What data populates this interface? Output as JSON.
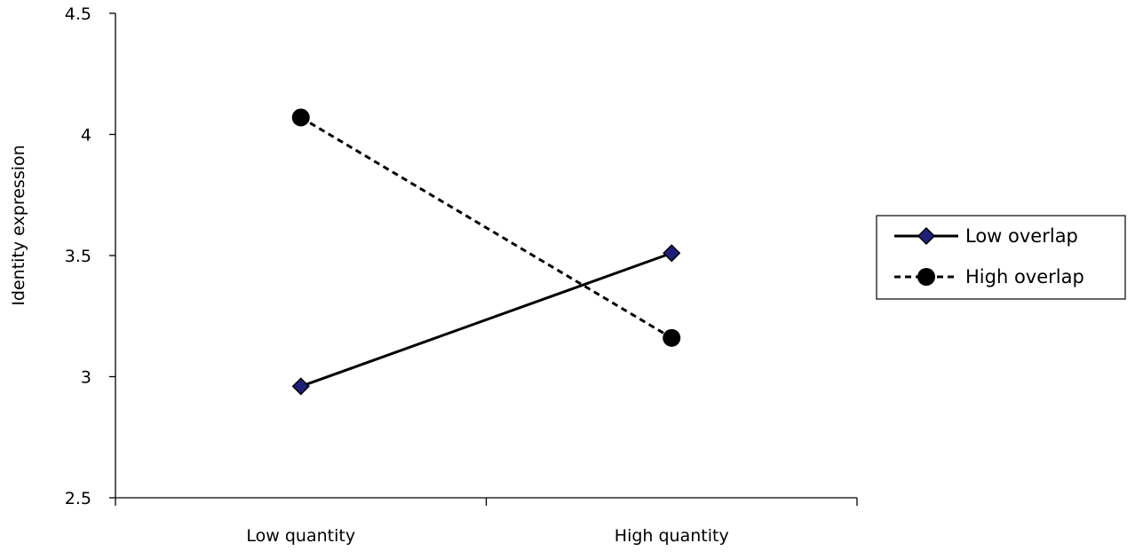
{
  "chart_data": {
    "type": "line",
    "title": "",
    "xlabel": "",
    "ylabel": "Identity expression",
    "categories": [
      "Low quantity",
      "High quantity"
    ],
    "ylim": [
      2.5,
      4.5
    ],
    "yticks": [
      2.5,
      3,
      3.5,
      4,
      4.5
    ],
    "ytick_labels": [
      "2.5",
      "3",
      "3.5",
      "4",
      "4.5"
    ],
    "grid": false,
    "legend_position": "right",
    "series": [
      {
        "name": "Low overlap",
        "values": [
          2.96,
          3.51
        ],
        "line_style": "solid",
        "marker": "diamond",
        "marker_color": "#1f1f7a",
        "line_color": "#000000"
      },
      {
        "name": "High overlap",
        "values": [
          4.07,
          3.16
        ],
        "line_style": "dashed",
        "marker": "circle",
        "marker_color": "#000000",
        "line_color": "#000000"
      }
    ]
  }
}
